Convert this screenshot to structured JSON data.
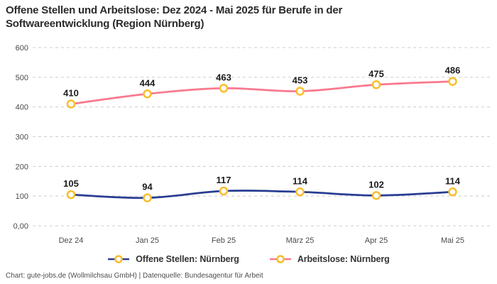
{
  "header": {
    "title_line1": "Offene Stellen und Arbeitslose: Dez 2024 - Mai 2025 für Berufe in der",
    "title_line2": "Softwareentwicklung (Region Nürnberg)"
  },
  "chart_data": {
    "type": "line",
    "title": "Offene Stellen und Arbeitslose: Dez 2024 - Mai 2025 für Berufe in der Softwareentwicklung (Region Nürnberg)",
    "categories": [
      "Dez 24",
      "Jan 25",
      "Feb 25",
      "März 25",
      "Apr 25",
      "Mai 25"
    ],
    "series": [
      {
        "name": "Offene Stellen: Nürnberg",
        "values": [
          105,
          94,
          117,
          114,
          102,
          114
        ],
        "color": "#283d93"
      },
      {
        "name": "Arbeitslose: Nürnberg",
        "values": [
          410,
          444,
          463,
          453,
          475,
          486
        ],
        "color": "#f8798f"
      }
    ],
    "ylim": [
      0,
      600
    ],
    "yticks": [
      {
        "value": 0,
        "label": "0,00"
      },
      {
        "value": 100,
        "label": "100"
      },
      {
        "value": 200,
        "label": "200"
      },
      {
        "value": 300,
        "label": "300"
      },
      {
        "value": 400,
        "label": "400"
      },
      {
        "value": 500,
        "label": "500"
      },
      {
        "value": 600,
        "label": "600"
      }
    ],
    "grid": "horizontal-dashed",
    "legend_position": "bottom",
    "colors": {
      "grid": "#cccccc",
      "marker": "#f9bd2b",
      "marker_fill": "#ffffff"
    }
  },
  "legend": {
    "marker_color": "#f9bd2b",
    "items": [
      {
        "label": "Offene Stellen: Nürnberg",
        "color": "#283d93"
      },
      {
        "label": "Arbeitslose: Nürnberg",
        "color": "#f8798f"
      }
    ]
  },
  "footer": {
    "credit": "Chart: gute-jobs.de (Wollmilchsau GmbH) | Datenquelle: Bundesagentur für Arbeit"
  }
}
